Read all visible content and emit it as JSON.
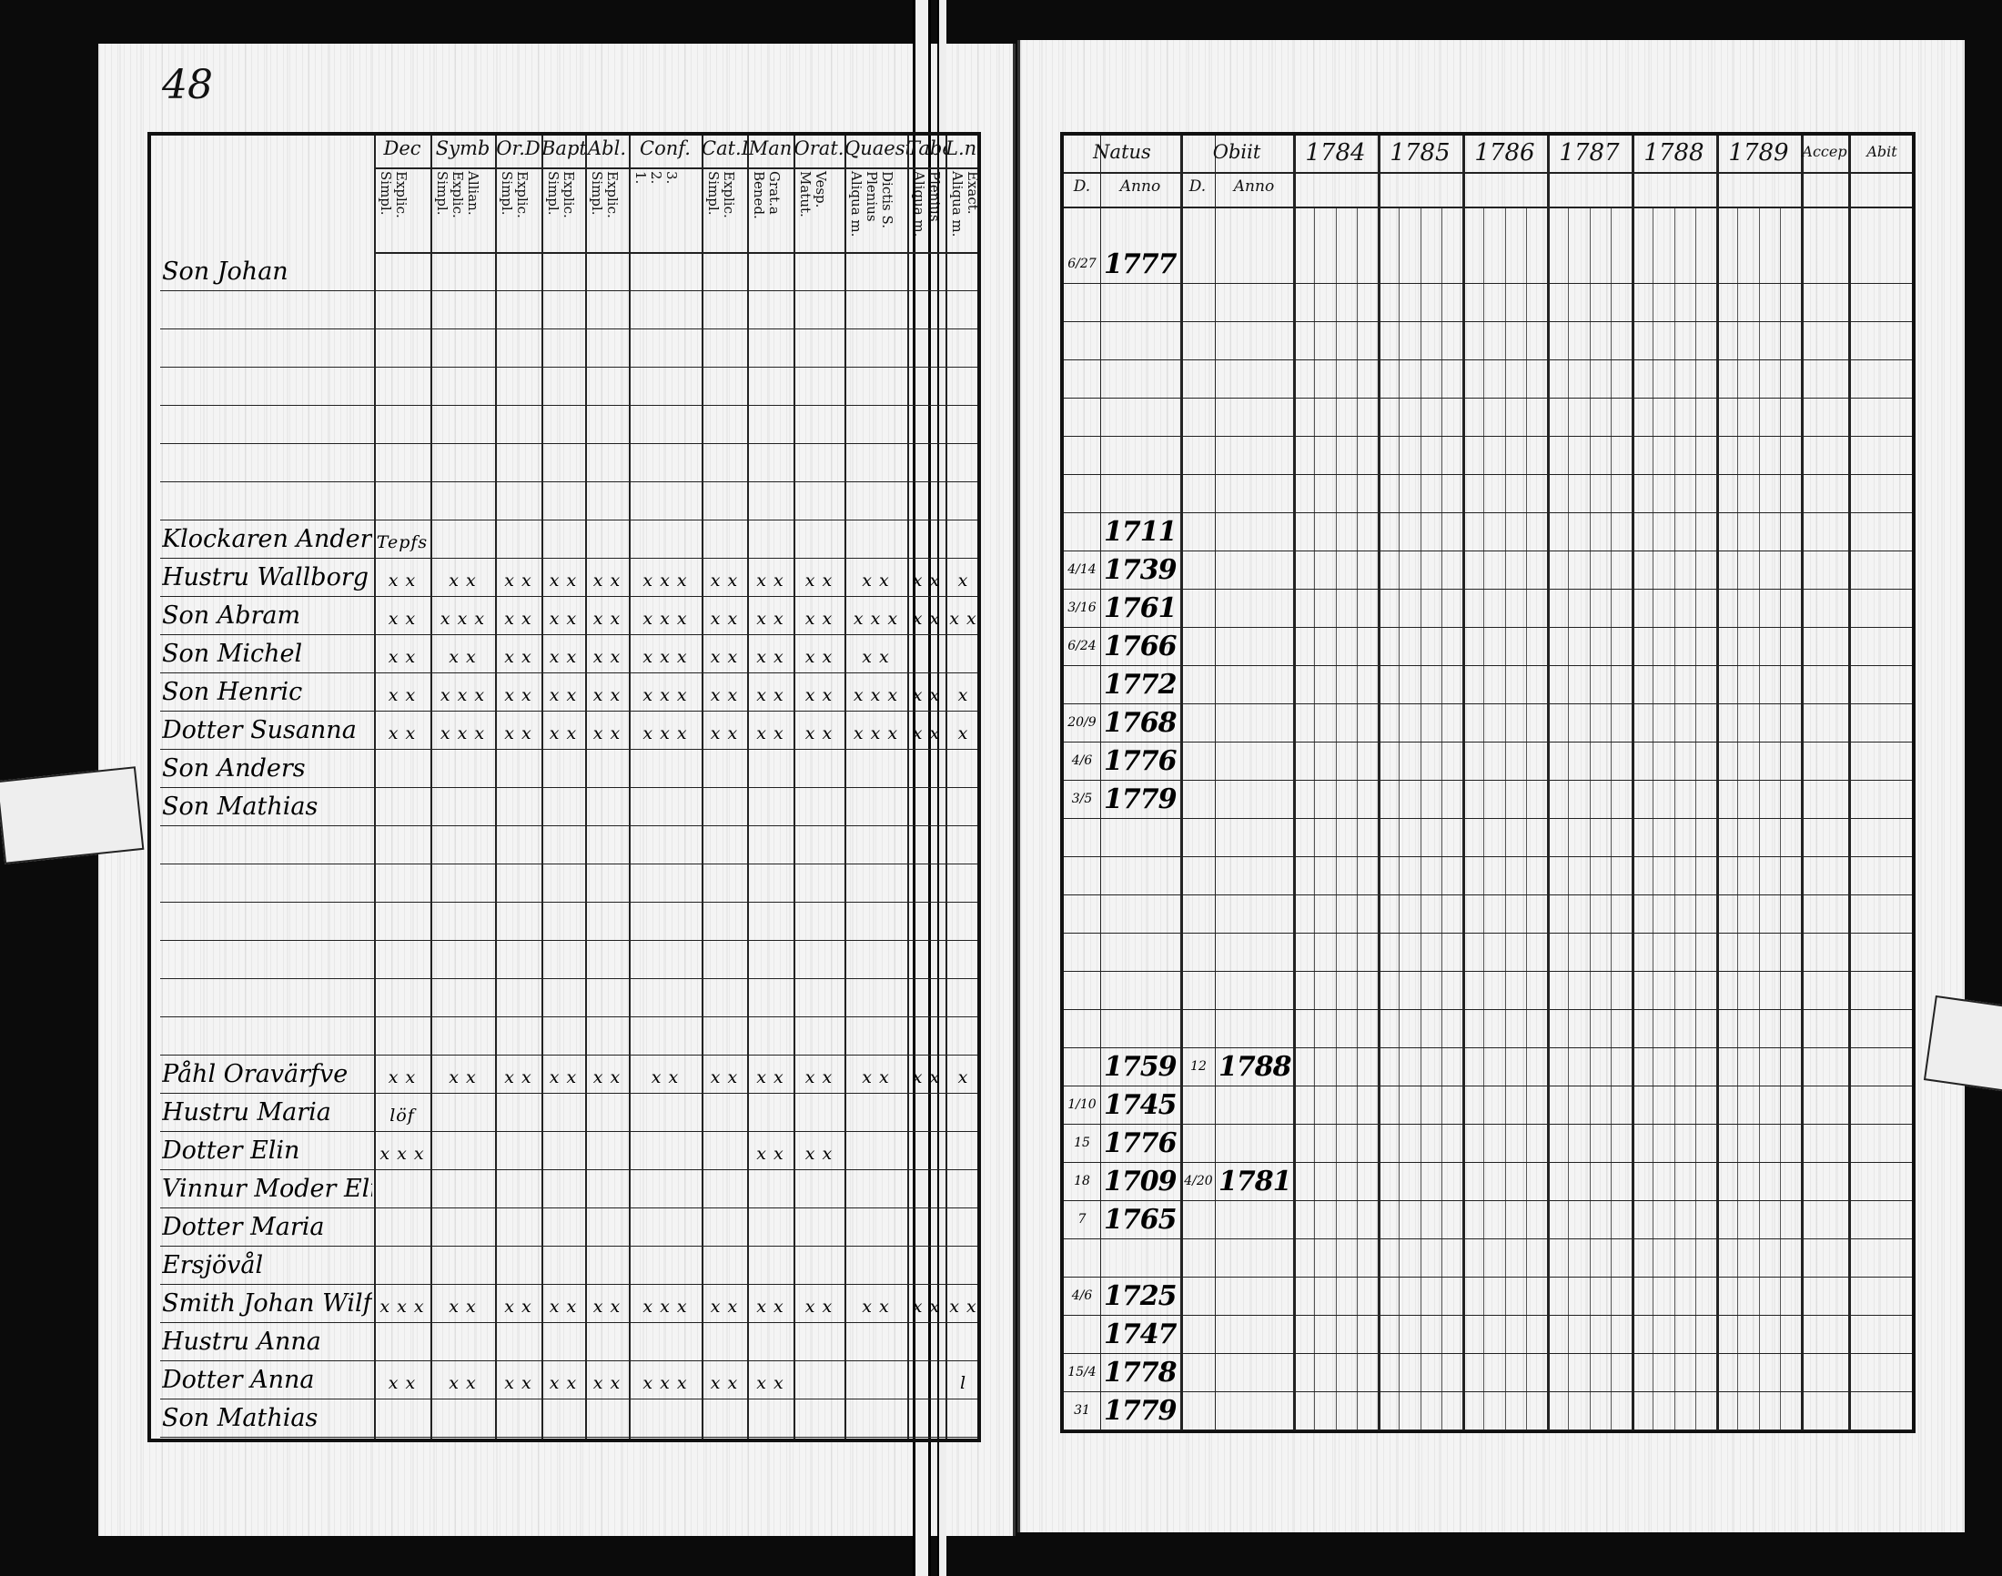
{
  "left_page": {
    "folio": "48",
    "columns": [
      {
        "title": "Dec",
        "sub": "Explic.\nSimpl."
      },
      {
        "title": "Symb",
        "sub": "Allian.\nExplic.\nSimpl."
      },
      {
        "title": "Or.D",
        "sub": "Explic.\nSimpl."
      },
      {
        "title": "Bapt",
        "sub": "Explic.\nSimpl."
      },
      {
        "title": "Abl.",
        "sub": "Explic.\nSimpl."
      },
      {
        "title": "Conf.",
        "sub": "3.\n2.\n1."
      },
      {
        "title": "Cat.D",
        "sub": "Explic.\nSimpl."
      },
      {
        "title": "Man",
        "sub": "Grat.a\nBened."
      },
      {
        "title": "Orat.",
        "sub": "Vesp.\nMatut."
      },
      {
        "title": "Quaest.",
        "sub": "Dictis S.\nPlenius\nAliqua m."
      },
      {
        "title": "Tabe",
        "sub": "Plenius\nAliqua m."
      },
      {
        "title": "L.n.",
        "sub": "Exact.\nAliqua m."
      }
    ],
    "rows": [
      {
        "name": "Son Johan",
        "marks": []
      },
      {
        "name": "",
        "marks": []
      },
      {
        "name": "",
        "marks": []
      },
      {
        "name": "",
        "marks": []
      },
      {
        "name": "",
        "marks": []
      },
      {
        "name": "",
        "marks": []
      },
      {
        "name": "",
        "marks": []
      },
      {
        "name": "Klockaren Anders",
        "marks": [
          "Tepfs"
        ]
      },
      {
        "name": "Hustru Wallborg",
        "marks": [
          "x x",
          "x x",
          "x x",
          "x x",
          "x x",
          "x x x",
          "x x",
          "x x",
          "x x",
          "x x",
          "x x",
          "x"
        ]
      },
      {
        "name": "Son Abram",
        "marks": [
          "x x",
          "x x x",
          "x x",
          "x x",
          "x x",
          "x x x",
          "x x",
          "x x",
          "x x",
          "x x x",
          "x x",
          "x x"
        ]
      },
      {
        "name": "Son Michel",
        "marks": [
          "x x",
          "x x",
          "x x",
          "x x",
          "x x",
          "x x x",
          "x x",
          "x x",
          "x x",
          "x x",
          "",
          ""
        ]
      },
      {
        "name": "Son Henric",
        "marks": [
          "x x",
          "x x x",
          "x x",
          "x x",
          "x x",
          "x x x",
          "x x",
          "x x",
          "x x",
          "x x x",
          "x x",
          "x"
        ]
      },
      {
        "name": "Dotter Susanna",
        "marks": [
          "x x",
          "x x x",
          "x x",
          "x x",
          "x x",
          "x x x",
          "x x",
          "x x",
          "x x",
          "x x x",
          "x x",
          "x"
        ]
      },
      {
        "name": "Son Anders",
        "marks": []
      },
      {
        "name": "Son Mathias",
        "marks": []
      },
      {
        "name": "",
        "marks": []
      },
      {
        "name": "",
        "marks": []
      },
      {
        "name": "",
        "marks": []
      },
      {
        "name": "",
        "marks": []
      },
      {
        "name": "",
        "marks": []
      },
      {
        "name": "",
        "marks": []
      },
      {
        "name": "Påhl Oravärfve",
        "marks": [
          "x x",
          "x x",
          "x x",
          "x x",
          "x x",
          "x x",
          "x x",
          "x x",
          "x x",
          "x x",
          "x x",
          "x"
        ]
      },
      {
        "name": "Hustru Maria",
        "marks": [
          "löf"
        ]
      },
      {
        "name": "Dotter Elin",
        "marks": [
          "x x x",
          "",
          "",
          "",
          "",
          "",
          "",
          "x x",
          "x x",
          "",
          "",
          ""
        ]
      },
      {
        "name": "Vinnur Moder Elin",
        "marks": []
      },
      {
        "name": "Dotter Maria",
        "marks": []
      },
      {
        "name": "Ersjövål",
        "marks": []
      },
      {
        "name": "Smith Johan Wilfsund",
        "marks": [
          "x x x",
          "x x",
          "x x",
          "x x",
          "x x",
          "x x x",
          "x x",
          "x x",
          "x x",
          "x x",
          "x x",
          "x x"
        ]
      },
      {
        "name": "Hustru Anna",
        "marks": []
      },
      {
        "name": "Dotter Anna",
        "marks": [
          "x x",
          "x x",
          "x x",
          "x x",
          "x x",
          "x x x",
          "x x",
          "x x",
          "",
          "",
          "",
          "l"
        ]
      },
      {
        "name": "Son Mathias",
        "marks": []
      }
    ]
  },
  "right_page": {
    "headers": {
      "natus": "Natus",
      "obiit": "Obiit",
      "d": "D.",
      "anno": "Anno",
      "accep": "Accep",
      "abit": "Abit"
    },
    "years": [
      "1784",
      "1785",
      "1786",
      "1787",
      "1788",
      "1789"
    ],
    "rows": [
      {
        "d": "6/27",
        "natus": "1777",
        "obiit_d": "",
        "obiit": ""
      },
      {},
      {},
      {},
      {},
      {},
      {},
      {
        "d": "",
        "natus": "1711",
        "obiit_d": "",
        "obiit": ""
      },
      {
        "d": "4/14",
        "natus": "1739"
      },
      {
        "d": "3/16",
        "natus": "1761"
      },
      {
        "d": "6/24",
        "natus": "1766"
      },
      {
        "d": "",
        "natus": "1772"
      },
      {
        "d": "20/9",
        "natus": "1768"
      },
      {
        "d": "4/6",
        "natus": "1776"
      },
      {
        "d": "3/5",
        "natus": "1779"
      },
      {},
      {},
      {},
      {},
      {},
      {},
      {
        "d": "",
        "natus": "1759",
        "obiit_d": "12",
        "obiit": "1788"
      },
      {
        "d": "1/10",
        "natus": "1745"
      },
      {
        "d": "15",
        "natus": "1776"
      },
      {
        "d": "18",
        "natus": "1709",
        "obiit_d": "4/20",
        "obiit": "1781"
      },
      {
        "d": "7",
        "natus": "1765"
      },
      {},
      {
        "d": "4/6",
        "natus": "1725"
      },
      {
        "d": "",
        "natus": "1747"
      },
      {
        "d": "15/4",
        "natus": "1778"
      },
      {
        "d": "31",
        "natus": "1779"
      }
    ]
  }
}
